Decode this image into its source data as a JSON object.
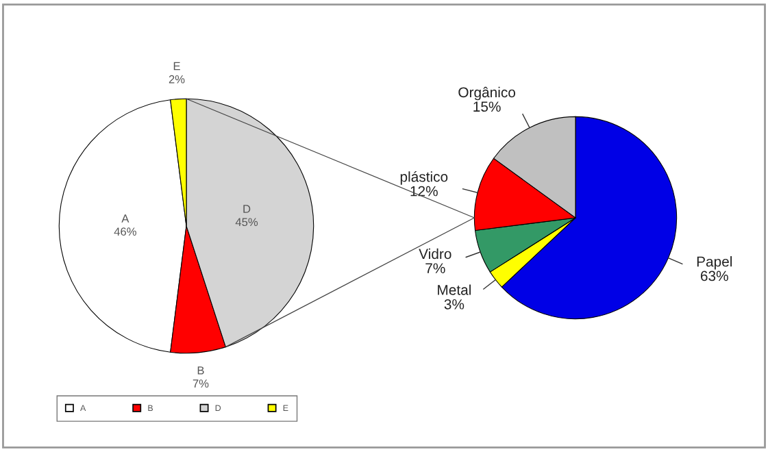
{
  "chart_data": [
    {
      "type": "pie",
      "categories": [
        "A",
        "B",
        "D",
        "E"
      ],
      "values": [
        46,
        7,
        45,
        2
      ],
      "value_labels": [
        "46%",
        "7%",
        "45%",
        "2%"
      ],
      "colors": [
        "#ffffff",
        "#ff0000",
        "#d4d4d4",
        "#ffff00"
      ],
      "legend": "bottom left"
    },
    {
      "type": "pie",
      "categories": [
        "Papel",
        "Metal",
        "Vidro",
        "plástico",
        "Orgânico"
      ],
      "values": [
        63,
        3,
        7,
        12,
        15
      ],
      "value_labels": [
        "63%",
        "3%",
        "7%",
        "12%",
        "15%"
      ],
      "colors": [
        "#0000e6",
        "#ffff00",
        "#339966",
        "#ff0000",
        "#c0c0c0"
      ]
    }
  ]
}
